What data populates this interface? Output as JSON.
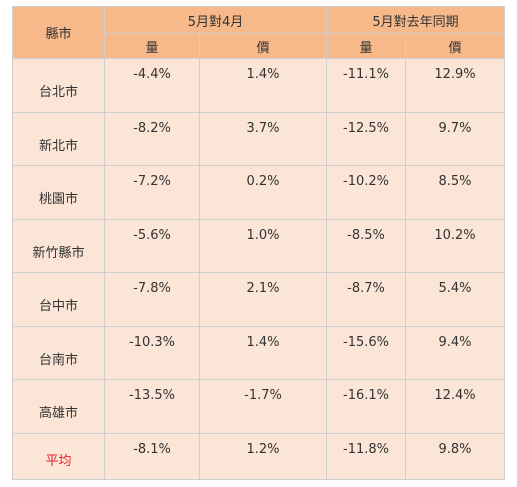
{
  "headers": {
    "region": "縣市",
    "group1": "5月對4月",
    "group2": "5月對去年同期",
    "sub": [
      "量",
      "價",
      "量",
      "價"
    ]
  },
  "rows": [
    {
      "name": "台北市",
      "v": [
        "-4.4%",
        "1.4%",
        "-11.1%",
        "12.9%"
      ]
    },
    {
      "name": "新北市",
      "v": [
        "-8.2%",
        "3.7%",
        "-12.5%",
        "9.7%"
      ]
    },
    {
      "name": "桃園市",
      "v": [
        "-7.2%",
        "0.2%",
        "-10.2%",
        "8.5%"
      ]
    },
    {
      "name": "新竹縣市",
      "v": [
        "-5.6%",
        "1.0%",
        "-8.5%",
        "10.2%"
      ]
    },
    {
      "name": "台中市",
      "v": [
        "-7.8%",
        "2.1%",
        "-8.7%",
        "5.4%"
      ]
    },
    {
      "name": "台南市",
      "v": [
        "-10.3%",
        "1.4%",
        "-15.6%",
        "9.4%"
      ]
    },
    {
      "name": "高雄市",
      "v": [
        "-13.5%",
        "-1.7%",
        "-16.1%",
        "12.4%"
      ]
    },
    {
      "name": "平均",
      "v": [
        "-8.1%",
        "1.2%",
        "-11.8%",
        "9.8%"
      ]
    }
  ],
  "colors": {
    "header_bg": "#f7b98a",
    "cell_bg": "#fbe5d6",
    "average_label": "#e8202a"
  }
}
